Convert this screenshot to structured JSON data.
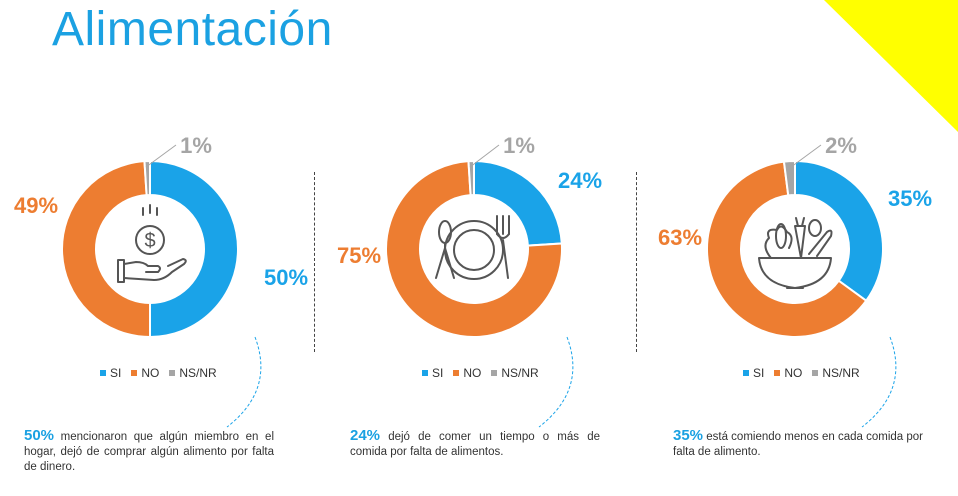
{
  "title": "Alimentación",
  "colors": {
    "si": "#1aa3e8",
    "no": "#ed7d31",
    "nsnr": "#a5a5a5",
    "accent": "#1ba1e2",
    "corner": "#ffff00"
  },
  "legend_labels": [
    "SI",
    "NO",
    "NS/NR"
  ],
  "chart_data": [
    {
      "type": "pie",
      "title": "",
      "categories": [
        "SI",
        "NO",
        "NS/NR"
      ],
      "values": [
        50,
        49,
        1
      ],
      "labels": [
        "50%",
        "49%",
        "1%"
      ],
      "icon": "money-hand-icon"
    },
    {
      "type": "pie",
      "title": "",
      "categories": [
        "SI",
        "NO",
        "NS/NR"
      ],
      "values": [
        24,
        75,
        1
      ],
      "labels": [
        "24%",
        "75%",
        "1%"
      ],
      "icon": "plate-cutlery-icon"
    },
    {
      "type": "pie",
      "title": "",
      "categories": [
        "SI",
        "NO",
        "NS/NR"
      ],
      "values": [
        35,
        63,
        2
      ],
      "labels": [
        "35%",
        "63%",
        "2%"
      ],
      "icon": "vegetable-bowl-icon"
    }
  ],
  "captions": [
    {
      "pct": "50%",
      "text": "mencionaron que algún miembro en el hogar, dejó de comprar algún alimento por falta de dinero."
    },
    {
      "pct": "24%",
      "text": "dejó de comer un tiempo o más de comida por falta de alimentos."
    },
    {
      "pct": "35%",
      "text": "está comiendo menos en cada comida por falta de alimento."
    }
  ]
}
